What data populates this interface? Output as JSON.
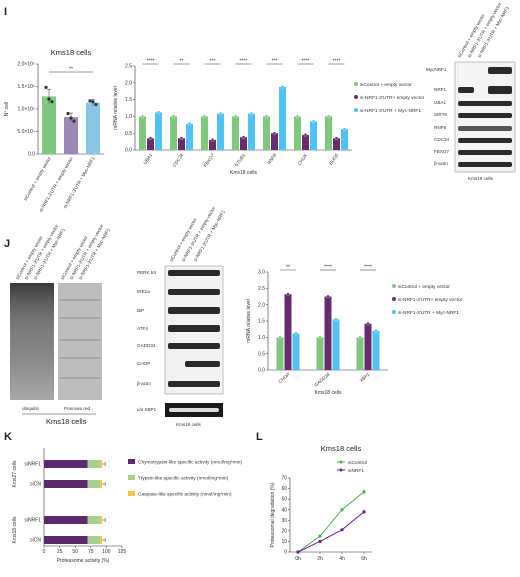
{
  "panel_labels": [
    "I",
    "J",
    "K",
    "L"
  ],
  "chart_data": [
    {
      "id": "I1",
      "type": "bar",
      "title": "Kms18 cells",
      "ylabel": "N° cell",
      "ytick_labels": [
        "0.0",
        "5.0×10⁴",
        "1.0×10⁵",
        "1.5×10⁵",
        "2.0×10⁵"
      ],
      "ylim": [
        0,
        200000
      ],
      "categories": [
        "siControl + empty vector",
        "si-NRF1-3'UTR + empty vector",
        "si-NRF1-3'UTR + Myc-NRF1"
      ],
      "values": [
        128000,
        82000,
        114000
      ],
      "errors": [
        16000,
        9000,
        7000
      ],
      "points": [
        [
          148000,
          122000,
          116000
        ],
        [
          90000,
          80000,
          73000
        ],
        [
          118000,
          116000,
          110000
        ]
      ],
      "colors": [
        "#7fc97f",
        "#9f87b8",
        "#88c7e8"
      ],
      "significance": [
        {
          "label": "**",
          "from": 0,
          "to": 2
        }
      ]
    },
    {
      "id": "I2",
      "type": "bar",
      "xlabel": "Kms18 cells",
      "ylabel": "mRNA relative level",
      "ytick_labels": [
        "0.0",
        "0.5",
        "1.0",
        "1.5",
        "2.0",
        "2.5"
      ],
      "ylim": [
        0,
        2.5
      ],
      "categories": [
        "UBA1",
        "CDC34",
        "FBXO7",
        "STUB1",
        "RNF8",
        "CHUK",
        "BUG5"
      ],
      "series": [
        {
          "name": "siControl + empty vector",
          "color": "#7fc97f",
          "values": [
            1.0,
            1.0,
            1.0,
            1.0,
            1.0,
            1.0,
            1.0
          ]
        },
        {
          "name": "si-NRF1-3'UTR+ empty vector",
          "color": "#6a2c70",
          "values": [
            0.35,
            0.35,
            0.3,
            0.38,
            0.5,
            0.45,
            0.35
          ]
        },
        {
          "name": "si-NRF1-3'UTR + Myc-NRF1",
          "color": "#4fc3f7",
          "values": [
            1.12,
            0.78,
            1.08,
            1.08,
            1.88,
            0.85,
            0.62
          ]
        }
      ],
      "significance": [
        "****",
        "**",
        "***",
        "****",
        "***",
        "****",
        "****"
      ]
    },
    {
      "id": "J3",
      "type": "bar",
      "xlabel": "Kms18 cells",
      "ylabel": "mRNA relative level",
      "ytick_labels": [
        "0.0",
        "0.5",
        "1.0",
        "1.5",
        "2.0",
        "2.5",
        "3.0"
      ],
      "ylim": [
        0,
        3.0
      ],
      "categories": [
        "CHOP",
        "GADD34",
        "XBP1"
      ],
      "series": [
        {
          "name": "siControl + empty vector",
          "color": "#7fc97f",
          "values": [
            1.0,
            1.0,
            1.0
          ]
        },
        {
          "name": "si-NRF1-3'UTR+ empty vector",
          "color": "#6a2c70",
          "values": [
            2.32,
            2.25,
            1.42
          ]
        },
        {
          "name": "si-NRF1-3'UTR + Myc-NRF1",
          "color": "#4fc3f7",
          "values": [
            1.12,
            1.55,
            1.2
          ]
        }
      ],
      "significance": [
        "**",
        "****",
        "****"
      ]
    },
    {
      "id": "K",
      "type": "bar",
      "xlabel": "Proteasome activity (%)",
      "xtick_labels": [
        "0",
        "25",
        "50",
        "75",
        "100",
        "125"
      ],
      "xlim": [
        0,
        125
      ],
      "row_labels": [
        "siNRF1",
        "siCN",
        "siNRF1",
        "siCN"
      ],
      "group_labels": [
        "Kms27 cells",
        "Kms18 cells"
      ],
      "series": [
        {
          "name": "Chymotrypsin-like specific activity (nmol/mg*min)",
          "color": "#5e2a6e",
          "values": [
            70,
            70,
            70,
            70
          ]
        },
        {
          "name": "Trypsin-like specific activity (nmol/mg*min)",
          "color": "#a8d08d",
          "values": [
            20,
            20,
            20,
            20
          ]
        },
        {
          "name": "Caspase-like specific activity (nmol/mg*min)",
          "color": "#f6c443",
          "values": [
            3,
            3,
            3,
            3
          ]
        }
      ],
      "errors": [
        5,
        5,
        5,
        5
      ]
    },
    {
      "id": "L",
      "type": "line",
      "title": "Kms18 cells",
      "xlabel": "",
      "ylabel": "Proteasomal degradation (%)",
      "x": [
        "0h",
        "2h",
        "4h",
        "6h"
      ],
      "ytick_labels": [
        "0",
        "10",
        "20",
        "30",
        "40",
        "50",
        "60",
        "70"
      ],
      "ylim": [
        0,
        70
      ],
      "series": [
        {
          "name": "siControl",
          "color": "#4caf50",
          "values": [
            0,
            15,
            40,
            57
          ],
          "errors": [
            0,
            1,
            2,
            3
          ]
        },
        {
          "name": "siNRF1",
          "color": "#6a1b9a",
          "values": [
            0,
            10,
            21,
            38
          ],
          "errors": [
            0,
            1,
            1,
            2
          ]
        }
      ]
    }
  ],
  "panel_I_blot": {
    "lanes": [
      "siControl + empty vector",
      "si-NRF1-3'UTR + empty vector",
      "si-NRF1-3'UTR + Myc-NRF1"
    ],
    "bands": [
      "MycNRF1",
      "NRF1",
      "UBA1",
      "SIRT6",
      "RNF8",
      "CDC34",
      "FBXO7",
      "β-actin"
    ],
    "caption": "Kms18 cells"
  },
  "panel_J_ubiquitin": {
    "lanes": [
      "siControl + empty vector",
      "si-NRF1-3'UTR + empty vector",
      "si-NRF1-3'UTR + Myc-NRF1",
      "siControl + empty vector",
      "si-NRF1-3'UTR + empty vector",
      "si-NRF1-3'UTR + Myc-NRF1"
    ],
    "labels": [
      "ubiquitin",
      "Ponceau red"
    ],
    "caption": "Kms18 cells"
  },
  "panel_J_blot": {
    "lanes": [
      "siControl + empty vector",
      "si-NRF1-3'UTR + empty vector",
      "si-NRF1-3'UTR + Myc-NRF1"
    ],
    "bands": [
      "PERK tot",
      "IRE1a",
      "BiP",
      "ATF4",
      "GADD34",
      "CHOP",
      "β-actin",
      "u/s XBP1"
    ],
    "caption": "Kms18 cells"
  }
}
